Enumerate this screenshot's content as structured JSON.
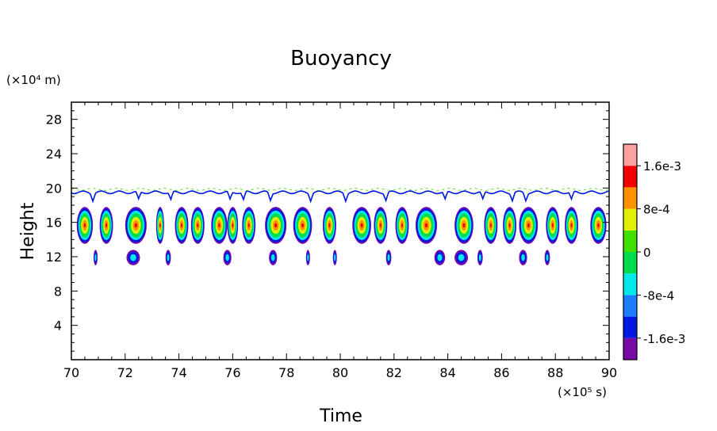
{
  "chart_data": {
    "type": "heatmap",
    "title": "Buoyancy",
    "xlabel": "Time",
    "ylabel": "Height",
    "x_unit": "(×10⁵ s)",
    "y_unit": "(×10⁴ m)",
    "xlim": [
      70,
      90
    ],
    "ylim": [
      0,
      30
    ],
    "x_ticks": [
      "70",
      "72",
      "74",
      "76",
      "78",
      "80",
      "82",
      "84",
      "86",
      "88",
      "90"
    ],
    "y_ticks": [
      "4",
      "8",
      "12",
      "16",
      "20",
      "24",
      "28"
    ],
    "colorbar": {
      "labels": [
        "1.6e-3",
        "8e-4",
        "0",
        "-8e-4",
        "-1.6e-3"
      ],
      "levels": [
        -0.002,
        -0.0016,
        -0.0012,
        -0.0008,
        -0.0004,
        0,
        0.0004,
        0.0008,
        0.0012,
        0.0016,
        0.002
      ],
      "colors": [
        "#7a0aa8",
        "#0018e0",
        "#1e7cff",
        "#00e8e8",
        "#00dc50",
        "#40e000",
        "#e0f000",
        "#ff9000",
        "#f00000",
        "#ffa0a0"
      ]
    },
    "features": [
      {
        "name": "tropopause-line",
        "time_range": [
          70,
          90
        ],
        "height": 19.5
      },
      {
        "name": "convective-band",
        "time_range": [
          70,
          90
        ],
        "height_range": [
          13.5,
          17.8
        ]
      },
      {
        "name": "lower-patches",
        "time_range": [
          70,
          88
        ],
        "height_range": [
          11.0,
          12.8
        ]
      }
    ],
    "cells": [
      {
        "t": 70.5,
        "w": 0.6
      },
      {
        "t": 71.3,
        "w": 0.5
      },
      {
        "t": 72.4,
        "w": 0.8
      },
      {
        "t": 73.3,
        "w": 0.3
      },
      {
        "t": 74.1,
        "w": 0.5
      },
      {
        "t": 74.7,
        "w": 0.5
      },
      {
        "t": 75.5,
        "w": 0.6
      },
      {
        "t": 76.0,
        "w": 0.4
      },
      {
        "t": 76.6,
        "w": 0.5
      },
      {
        "t": 77.6,
        "w": 0.8
      },
      {
        "t": 78.6,
        "w": 0.7
      },
      {
        "t": 79.6,
        "w": 0.5
      },
      {
        "t": 80.8,
        "w": 0.7
      },
      {
        "t": 81.5,
        "w": 0.5
      },
      {
        "t": 82.3,
        "w": 0.5
      },
      {
        "t": 83.2,
        "w": 0.8
      },
      {
        "t": 84.6,
        "w": 0.7
      },
      {
        "t": 85.6,
        "w": 0.5
      },
      {
        "t": 86.3,
        "w": 0.5
      },
      {
        "t": 87.0,
        "w": 0.7
      },
      {
        "t": 87.9,
        "w": 0.5
      },
      {
        "t": 88.6,
        "w": 0.5
      },
      {
        "t": 89.6,
        "w": 0.6
      }
    ],
    "low_patches": [
      {
        "t": 70.9,
        "w": 0.15
      },
      {
        "t": 72.3,
        "w": 0.5
      },
      {
        "t": 73.6,
        "w": 0.2
      },
      {
        "t": 75.8,
        "w": 0.3
      },
      {
        "t": 77.5,
        "w": 0.3
      },
      {
        "t": 78.8,
        "w": 0.15
      },
      {
        "t": 79.8,
        "w": 0.15
      },
      {
        "t": 81.8,
        "w": 0.2
      },
      {
        "t": 83.7,
        "w": 0.4
      },
      {
        "t": 84.5,
        "w": 0.5
      },
      {
        "t": 85.2,
        "w": 0.2
      },
      {
        "t": 86.8,
        "w": 0.3
      },
      {
        "t": 87.7,
        "w": 0.2
      }
    ]
  }
}
